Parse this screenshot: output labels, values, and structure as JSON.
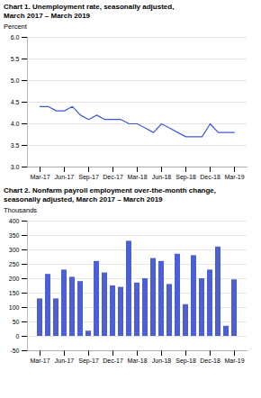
{
  "chart_data": [
    {
      "type": "line",
      "title": "Chart 1. Unemployment rate, seasonally adjusted,",
      "subtitle": "March 2017 – March 2019",
      "ylabel": "Percent",
      "categories": [
        "Mar-17",
        null,
        null,
        "Jun-17",
        null,
        null,
        "Sep-17",
        null,
        null,
        "Dec-17",
        null,
        null,
        "Mar-18",
        null,
        null,
        "Jun-18",
        null,
        null,
        "Sep-18",
        null,
        null,
        "Dec-18",
        null,
        null,
        "Mar-19"
      ],
      "values": [
        4.4,
        4.4,
        4.3,
        4.3,
        4.4,
        4.2,
        4.1,
        4.2,
        4.1,
        4.1,
        4.1,
        4.0,
        4.0,
        3.9,
        3.8,
        4.0,
        3.9,
        3.8,
        3.7,
        3.7,
        3.7,
        4.0,
        3.8,
        3.8,
        3.8
      ],
      "color": "#3b5bdb",
      "ylim": [
        3.0,
        6.0
      ],
      "yticks": [
        {
          "value": 3.0,
          "label": "3.0"
        },
        3.5,
        {
          "value": 4.0,
          "label": "4.0"
        },
        4.5,
        {
          "value": 5.0,
          "label": "5.0"
        },
        5.5,
        {
          "value": 6.0,
          "label": "6.0"
        }
      ],
      "grid": true
    },
    {
      "type": "bar",
      "title": "Chart 2. Nonfarm payroll employment over-the-month change,",
      "subtitle": "seasonally adjusted, March 2017 – March 2019",
      "ylabel": "Thousands",
      "categories": [
        "Mar-17",
        null,
        null,
        "Jun-17",
        null,
        null,
        "Sep-17",
        null,
        null,
        "Dec-17",
        null,
        null,
        "Mar-18",
        null,
        null,
        "Jun-18",
        null,
        null,
        "Sep-18",
        null,
        null,
        "Dec-18",
        null,
        null,
        "Mar-19"
      ],
      "values": [
        130,
        215,
        130,
        230,
        205,
        190,
        18,
        260,
        220,
        175,
        170,
        330,
        185,
        200,
        270,
        260,
        180,
        285,
        110,
        280,
        200,
        230,
        310,
        35,
        196
      ],
      "color": "#4c5fd5",
      "ylim": [
        -50,
        400
      ],
      "yticks": [
        -50,
        0,
        50,
        100,
        150,
        200,
        250,
        300,
        350,
        400
      ],
      "grid": true
    }
  ]
}
